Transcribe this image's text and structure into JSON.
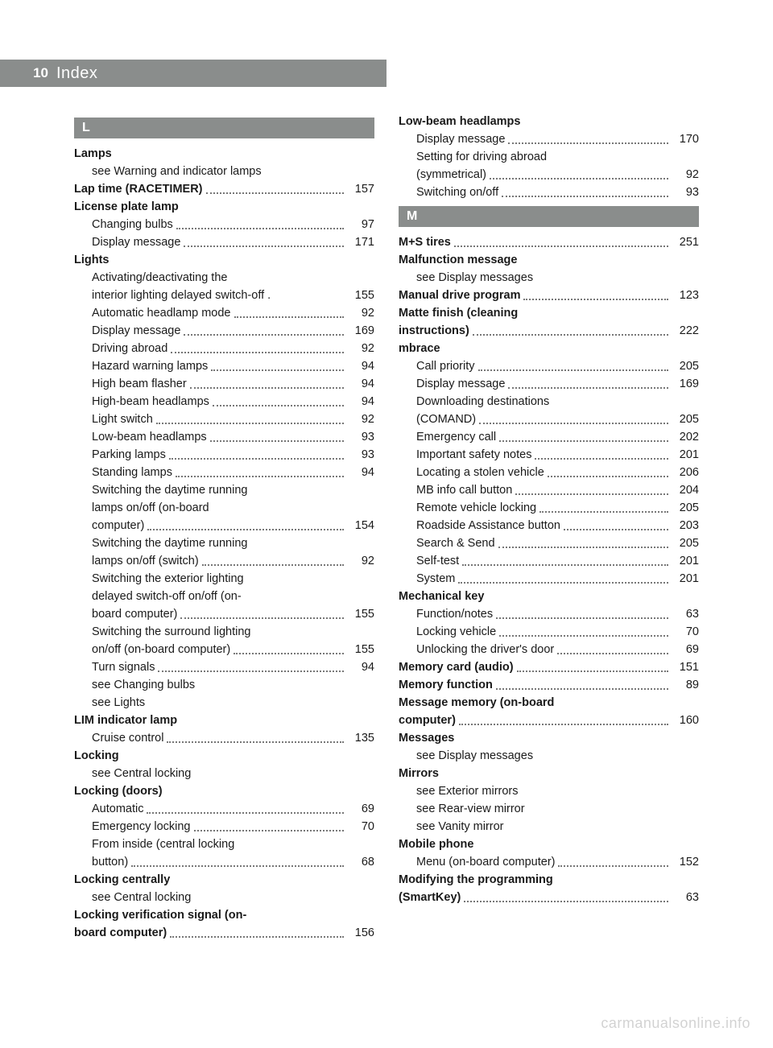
{
  "header": {
    "page_number": "10",
    "title": "Index"
  },
  "columns": [
    [
      {
        "type": "letter",
        "text": "L"
      },
      {
        "type": "main",
        "label": "Lamps"
      },
      {
        "type": "sub",
        "label": "see Warning and indicator lamps"
      },
      {
        "type": "main",
        "label": "Lap time (RACETIMER)",
        "page": "157",
        "leader": true
      },
      {
        "type": "main",
        "label": "License plate lamp"
      },
      {
        "type": "sub",
        "label": "Changing bulbs",
        "page": "97",
        "leader": true
      },
      {
        "type": "sub",
        "label": "Display message",
        "page": "171",
        "leader": true
      },
      {
        "type": "main",
        "label": "Lights"
      },
      {
        "type": "sub",
        "label": "Activating/deactivating the"
      },
      {
        "type": "sub",
        "label": "interior lighting delayed switch-off .",
        "page": "155"
      },
      {
        "type": "sub",
        "label": "Automatic headlamp mode",
        "page": "92",
        "leader": true
      },
      {
        "type": "sub",
        "label": "Display message",
        "page": "169",
        "leader": true
      },
      {
        "type": "sub",
        "label": "Driving abroad",
        "page": "92",
        "leader": true
      },
      {
        "type": "sub",
        "label": "Hazard warning lamps",
        "page": "94",
        "leader": true
      },
      {
        "type": "sub",
        "label": "High beam flasher",
        "page": "94",
        "leader": true
      },
      {
        "type": "sub",
        "label": "High-beam headlamps",
        "page": "94",
        "leader": true
      },
      {
        "type": "sub",
        "label": "Light switch",
        "page": "92",
        "leader": true
      },
      {
        "type": "sub",
        "label": "Low-beam headlamps",
        "page": "93",
        "leader": true
      },
      {
        "type": "sub",
        "label": "Parking lamps",
        "page": "93",
        "leader": true
      },
      {
        "type": "sub",
        "label": "Standing lamps",
        "page": "94",
        "leader": true
      },
      {
        "type": "sub",
        "label": "Switching the daytime running"
      },
      {
        "type": "sub",
        "label": "lamps on/off (on-board"
      },
      {
        "type": "sub",
        "label": "computer)",
        "page": "154",
        "leader": true
      },
      {
        "type": "sub",
        "label": "Switching the daytime running"
      },
      {
        "type": "sub",
        "label": "lamps on/off (switch)",
        "page": "92",
        "leader": true
      },
      {
        "type": "sub",
        "label": "Switching the exterior lighting"
      },
      {
        "type": "sub",
        "label": "delayed switch-off on/off (on-"
      },
      {
        "type": "sub",
        "label": "board computer)",
        "page": "155",
        "leader": true
      },
      {
        "type": "sub",
        "label": "Switching the surround lighting"
      },
      {
        "type": "sub",
        "label": "on/off (on-board computer)",
        "page": "155",
        "leader": true
      },
      {
        "type": "sub",
        "label": "Turn signals",
        "page": "94",
        "leader": true
      },
      {
        "type": "sub",
        "label": "see Changing bulbs"
      },
      {
        "type": "sub",
        "label": "see Lights"
      },
      {
        "type": "main",
        "label": "LIM indicator lamp"
      },
      {
        "type": "sub",
        "label": "Cruise control",
        "page": "135",
        "leader": true
      },
      {
        "type": "main",
        "label": "Locking"
      },
      {
        "type": "sub",
        "label": "see Central locking"
      },
      {
        "type": "main",
        "label": "Locking (doors)"
      },
      {
        "type": "sub",
        "label": "Automatic",
        "page": "69",
        "leader": true
      },
      {
        "type": "sub",
        "label": "Emergency locking",
        "page": "70",
        "leader": true
      },
      {
        "type": "sub",
        "label": "From inside (central locking"
      },
      {
        "type": "sub",
        "label": "button)",
        "page": "68",
        "leader": true
      },
      {
        "type": "main",
        "label": "Locking centrally"
      },
      {
        "type": "sub",
        "label": "see Central locking"
      },
      {
        "type": "main",
        "label": "Locking verification signal (on-"
      },
      {
        "type": "main",
        "label": "board computer)",
        "page": "156",
        "leader": true
      }
    ],
    [
      {
        "type": "main",
        "label": "Low-beam headlamps"
      },
      {
        "type": "sub",
        "label": "Display message",
        "page": "170",
        "leader": true
      },
      {
        "type": "sub",
        "label": "Setting for driving abroad"
      },
      {
        "type": "sub",
        "label": "(symmetrical)",
        "page": "92",
        "leader": true
      },
      {
        "type": "sub",
        "label": "Switching on/off",
        "page": "93",
        "leader": true
      },
      {
        "type": "letter",
        "text": "M"
      },
      {
        "type": "main",
        "label": "M+S tires",
        "page": "251",
        "leader": true
      },
      {
        "type": "main",
        "label": "Malfunction message"
      },
      {
        "type": "sub",
        "label": "see Display messages"
      },
      {
        "type": "main",
        "label": "Manual drive program",
        "page": "123",
        "leader": true
      },
      {
        "type": "main",
        "label": "Matte finish (cleaning"
      },
      {
        "type": "main",
        "label": "instructions)",
        "page": "222",
        "leader": true
      },
      {
        "type": "main",
        "label": "mbrace"
      },
      {
        "type": "sub",
        "label": "Call priority",
        "page": "205",
        "leader": true
      },
      {
        "type": "sub",
        "label": "Display message",
        "page": "169",
        "leader": true
      },
      {
        "type": "sub",
        "label": "Downloading destinations"
      },
      {
        "type": "sub",
        "label": "(COMAND)",
        "page": "205",
        "leader": true
      },
      {
        "type": "sub",
        "label": "Emergency call",
        "page": "202",
        "leader": true
      },
      {
        "type": "sub",
        "label": "Important safety notes",
        "page": "201",
        "leader": true
      },
      {
        "type": "sub",
        "label": "Locating a stolen vehicle",
        "page": "206",
        "leader": true
      },
      {
        "type": "sub",
        "label": "MB info call button",
        "page": "204",
        "leader": true
      },
      {
        "type": "sub",
        "label": "Remote vehicle locking",
        "page": "205",
        "leader": true
      },
      {
        "type": "sub",
        "label": "Roadside Assistance button",
        "page": "203",
        "leader": true
      },
      {
        "type": "sub",
        "label": "Search & Send",
        "page": "205",
        "leader": true
      },
      {
        "type": "sub",
        "label": "Self-test",
        "page": "201",
        "leader": true
      },
      {
        "type": "sub",
        "label": "System",
        "page": "201",
        "leader": true
      },
      {
        "type": "main",
        "label": "Mechanical key"
      },
      {
        "type": "sub",
        "label": "Function/notes",
        "page": "63",
        "leader": true
      },
      {
        "type": "sub",
        "label": "Locking vehicle",
        "page": "70",
        "leader": true
      },
      {
        "type": "sub",
        "label": "Unlocking the driver's door",
        "page": "69",
        "leader": true
      },
      {
        "type": "main",
        "label": "Memory card (audio)",
        "page": "151",
        "leader": true
      },
      {
        "type": "main",
        "label": "Memory function",
        "page": "89",
        "leader": true
      },
      {
        "type": "main",
        "label": "Message memory (on-board"
      },
      {
        "type": "main",
        "label": "computer)",
        "page": "160",
        "leader": true
      },
      {
        "type": "main",
        "label": "Messages"
      },
      {
        "type": "sub",
        "label": "see Display messages"
      },
      {
        "type": "main",
        "label": "Mirrors"
      },
      {
        "type": "sub",
        "label": "see Exterior mirrors"
      },
      {
        "type": "sub",
        "label": "see Rear-view mirror"
      },
      {
        "type": "sub",
        "label": "see Vanity mirror"
      },
      {
        "type": "main",
        "label": "Mobile phone"
      },
      {
        "type": "sub",
        "label": "Menu (on-board computer)",
        "page": "152",
        "leader": true
      },
      {
        "type": "main",
        "label": "Modifying the programming"
      },
      {
        "type": "main",
        "label": "(SmartKey)",
        "page": "63",
        "leader": true
      }
    ]
  ],
  "watermark": "carmanualsonline.info"
}
